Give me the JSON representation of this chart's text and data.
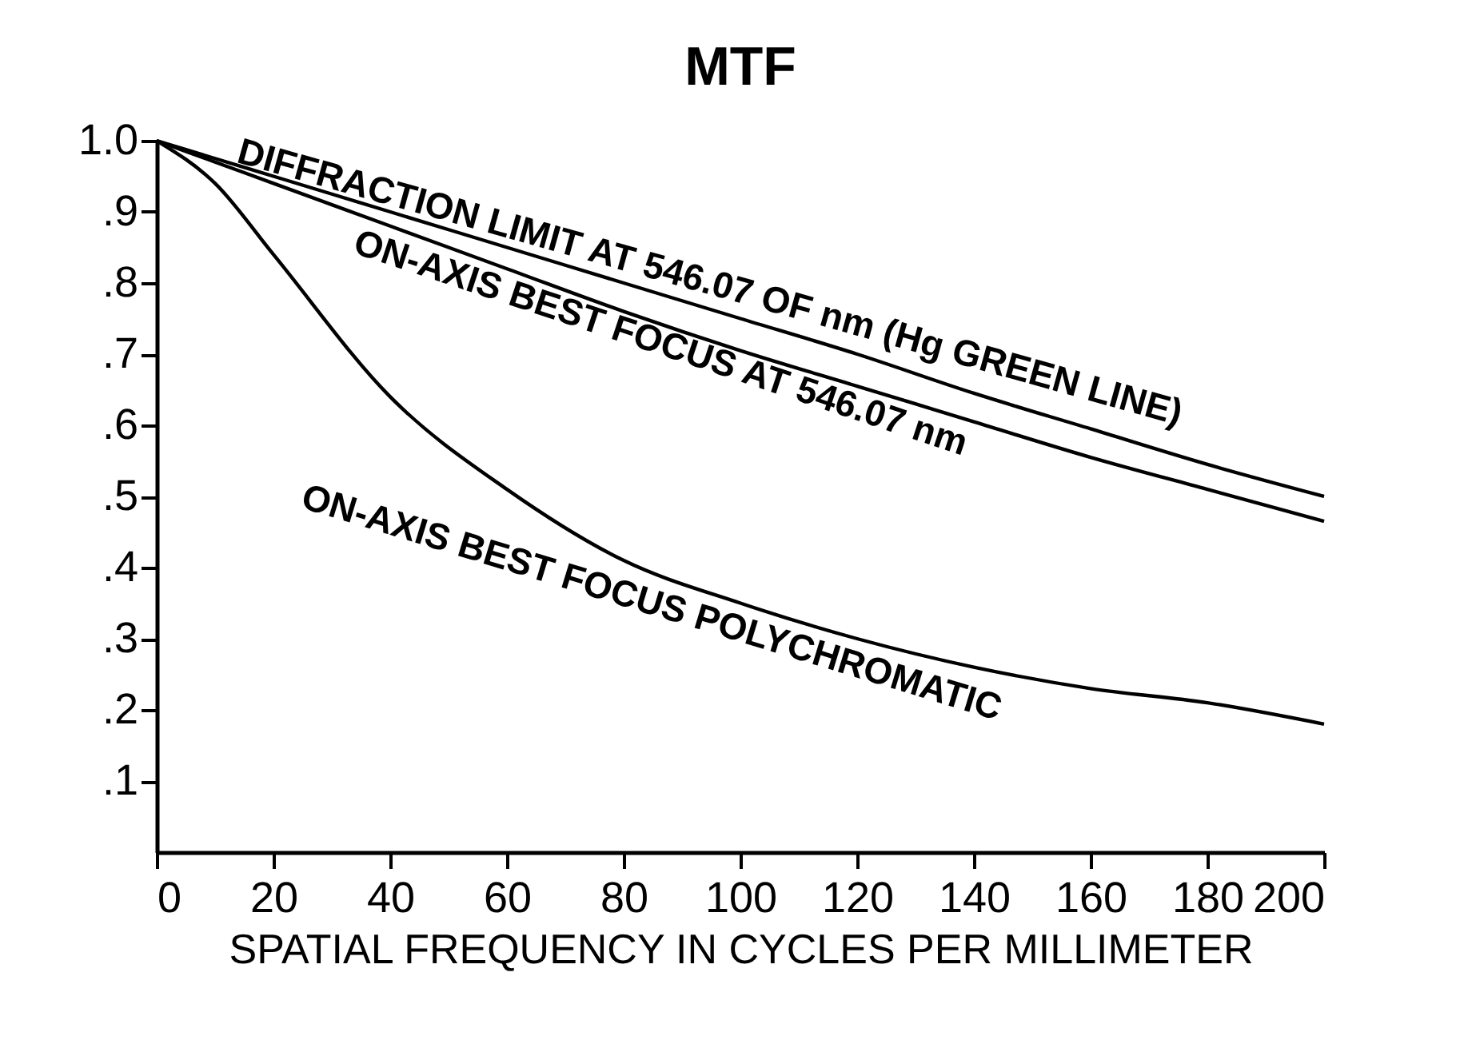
{
  "chart_data": {
    "type": "line",
    "title": "MTF",
    "xlabel": "SPATIAL FREQUENCY IN CYCLES PER MILLIMETER",
    "x": [
      0,
      10,
      20,
      40,
      60,
      80,
      100,
      120,
      140,
      160,
      180,
      200
    ],
    "series": [
      {
        "name": "DIFFRACTION LIMIT AT 546.07 OF nm (Hg GREEN LINE)",
        "color": "#000000",
        "values": [
          1.0,
          0.975,
          0.95,
          0.9,
          0.85,
          0.8,
          0.75,
          0.7,
          0.645,
          0.595,
          0.545,
          0.5
        ]
      },
      {
        "name": "ON-AXIS BEST FOCUS AT 546.07 nm",
        "color": "#000000",
        "values": [
          1.0,
          0.97,
          0.94,
          0.88,
          0.82,
          0.76,
          0.705,
          0.655,
          0.605,
          0.555,
          0.51,
          0.465
        ]
      },
      {
        "name": "ON-AXIS BEST FOCUS POLYCHROMATIC",
        "color": "#000000",
        "values": [
          1.0,
          0.94,
          0.84,
          0.64,
          0.51,
          0.41,
          0.35,
          0.3,
          0.26,
          0.23,
          0.21,
          0.18
        ]
      }
    ],
    "xlim": [
      0,
      200
    ],
    "xticks": [
      0,
      20,
      40,
      60,
      80,
      100,
      120,
      140,
      160,
      180,
      200
    ],
    "ylim": [
      0,
      1.0
    ],
    "yticks": [
      {
        "value": 0.1,
        "label": ".1"
      },
      {
        "value": 0.2,
        "label": ".2"
      },
      {
        "value": 0.3,
        "label": ".3"
      },
      {
        "value": 0.4,
        "label": ".4"
      },
      {
        "value": 0.5,
        "label": ".5"
      },
      {
        "value": 0.6,
        "label": ".6"
      },
      {
        "value": 0.7,
        "label": ".7"
      },
      {
        "value": 0.8,
        "label": ".8"
      },
      {
        "value": 0.9,
        "label": ".9"
      },
      {
        "value": 1.0,
        "label": "1.0"
      }
    ],
    "grid": false,
    "marker": "none",
    "line_style": "solid"
  }
}
